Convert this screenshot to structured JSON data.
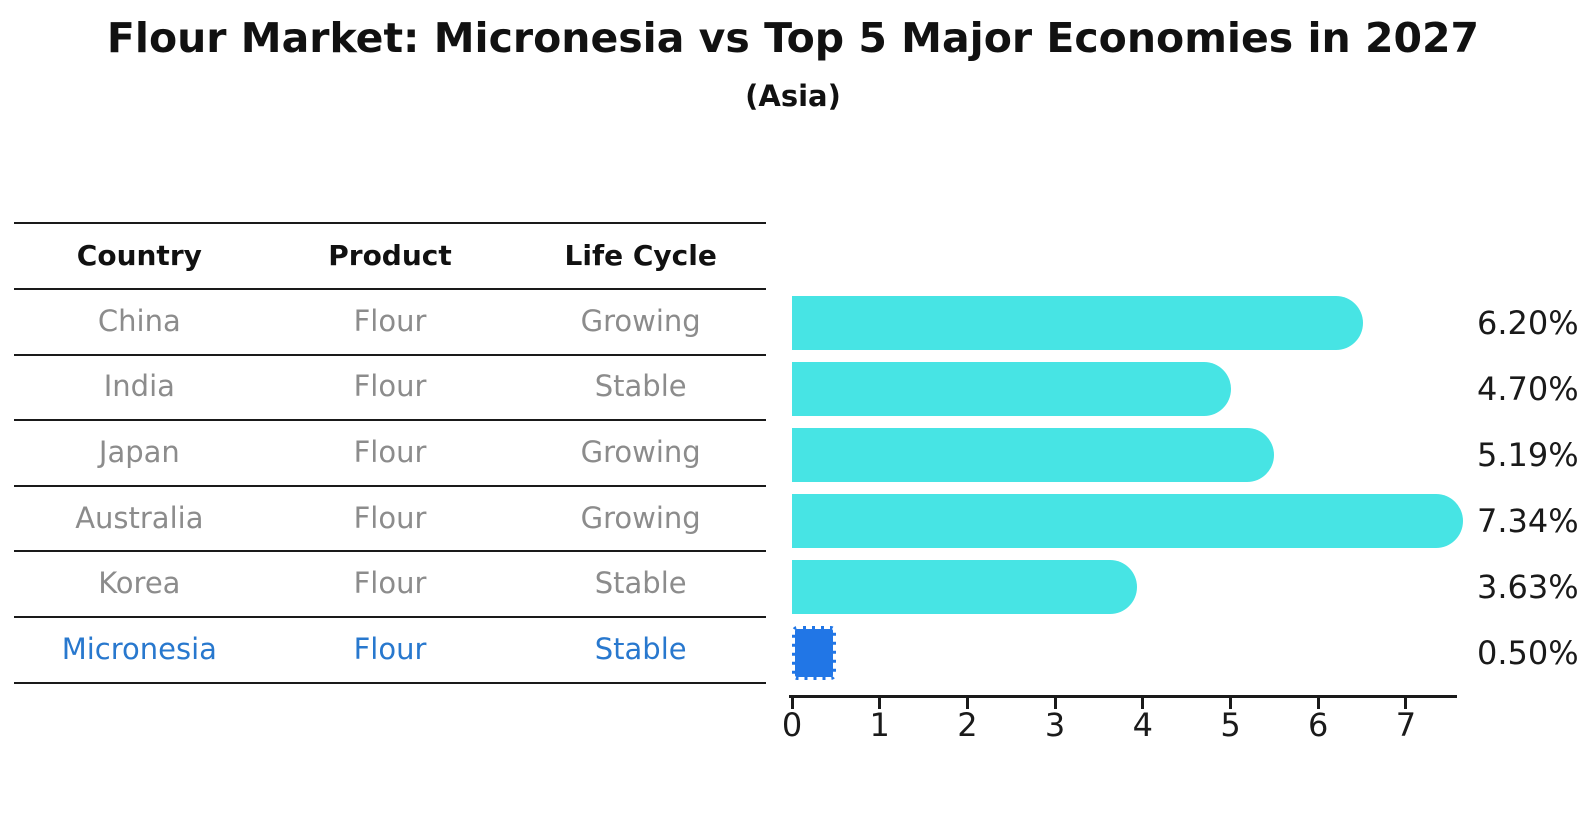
{
  "title": "Flour Market: Micronesia vs Top 5 Major Economies in 2027",
  "subtitle": "(Asia)",
  "table": {
    "headers": [
      "Country",
      "Product",
      "Life Cycle"
    ],
    "rows": [
      [
        "China",
        "Flour",
        "Growing"
      ],
      [
        "India",
        "Flour",
        "Stable"
      ],
      [
        "Japan",
        "Flour",
        "Growing"
      ],
      [
        "Australia",
        "Flour",
        "Growing"
      ],
      [
        "Korea",
        "Flour",
        "Stable"
      ],
      [
        "Micronesia",
        "Flour",
        "Stable"
      ]
    ],
    "highlight_row_index": 5
  },
  "chart_data": {
    "type": "bar",
    "orientation": "horizontal",
    "title": "Flour Market: Micronesia vs Top 5 Major Economies in 2027",
    "subtitle": "(Asia)",
    "categories": [
      "China",
      "India",
      "Japan",
      "Australia",
      "Korea",
      "Micronesia"
    ],
    "values": [
      6.2,
      4.7,
      5.19,
      7.34,
      3.63,
      0.5
    ],
    "value_labels": [
      "6.20%",
      "4.70%",
      "5.19%",
      "7.34%",
      "3.63%",
      "0.50%"
    ],
    "x_ticks": [
      "0",
      "1",
      "2",
      "3",
      "4",
      "5",
      "6",
      "7"
    ],
    "xlim": [
      0,
      7.57
    ],
    "grid": false,
    "legend": false,
    "highlight_index": 5,
    "colors": {
      "bar": "#47E4E4",
      "highlight_bar": "#2176E6",
      "axis_text": "#1a1a1a",
      "table_text": "#8C8C8C",
      "highlight_text": "#2878CE",
      "title_text": "#111111"
    }
  }
}
